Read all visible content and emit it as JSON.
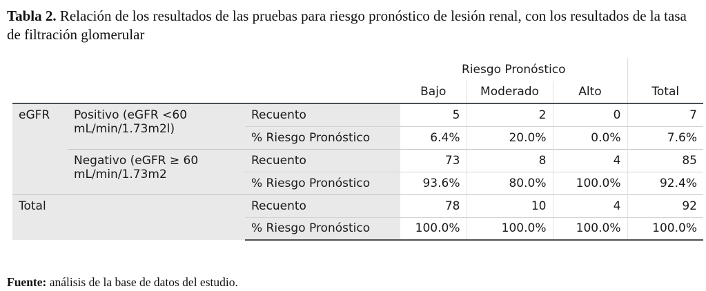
{
  "caption": {
    "label": "Tabla 2.",
    "text": "Relación de los resultados de las pruebas para riesgo pronóstico de lesión renal, con los resultados de la tasa de filtración glomerular"
  },
  "table": {
    "group_header": "Riesgo Pronóstico",
    "columns": [
      "Bajo",
      "Moderado",
      "Alto",
      "Total"
    ],
    "rows": [
      {
        "group": "eGFR",
        "subgroup": "Positivo (eGFR <60 mL/min/1.73m2l)",
        "stats": [
          {
            "label": "Recuento",
            "values": [
              "5",
              "2",
              "0",
              "7"
            ]
          },
          {
            "label": "% Riesgo Pronóstico",
            "values": [
              "6.4%",
              "20.0%",
              "0.0%",
              "7.6%"
            ]
          }
        ]
      },
      {
        "group": "",
        "subgroup": "Negativo (eGFR ≥ 60 mL/min/1.73m2",
        "stats": [
          {
            "label": "Recuento",
            "values": [
              "73",
              "8",
              "4",
              "85"
            ]
          },
          {
            "label": "% Riesgo Pronóstico",
            "values": [
              "93.6%",
              "80.0%",
              "100.0%",
              "92.4%"
            ]
          }
        ]
      },
      {
        "group": "Total",
        "subgroup": "",
        "stats": [
          {
            "label": "Recuento",
            "values": [
              "78",
              "10",
              "4",
              "92"
            ]
          },
          {
            "label": "% Riesgo Pronóstico",
            "values": [
              "100.0%",
              "100.0%",
              "100.0%",
              "100.0%"
            ]
          }
        ]
      }
    ]
  },
  "source": {
    "label": "Fuente:",
    "text": "análisis de la base de datos del estudio."
  }
}
